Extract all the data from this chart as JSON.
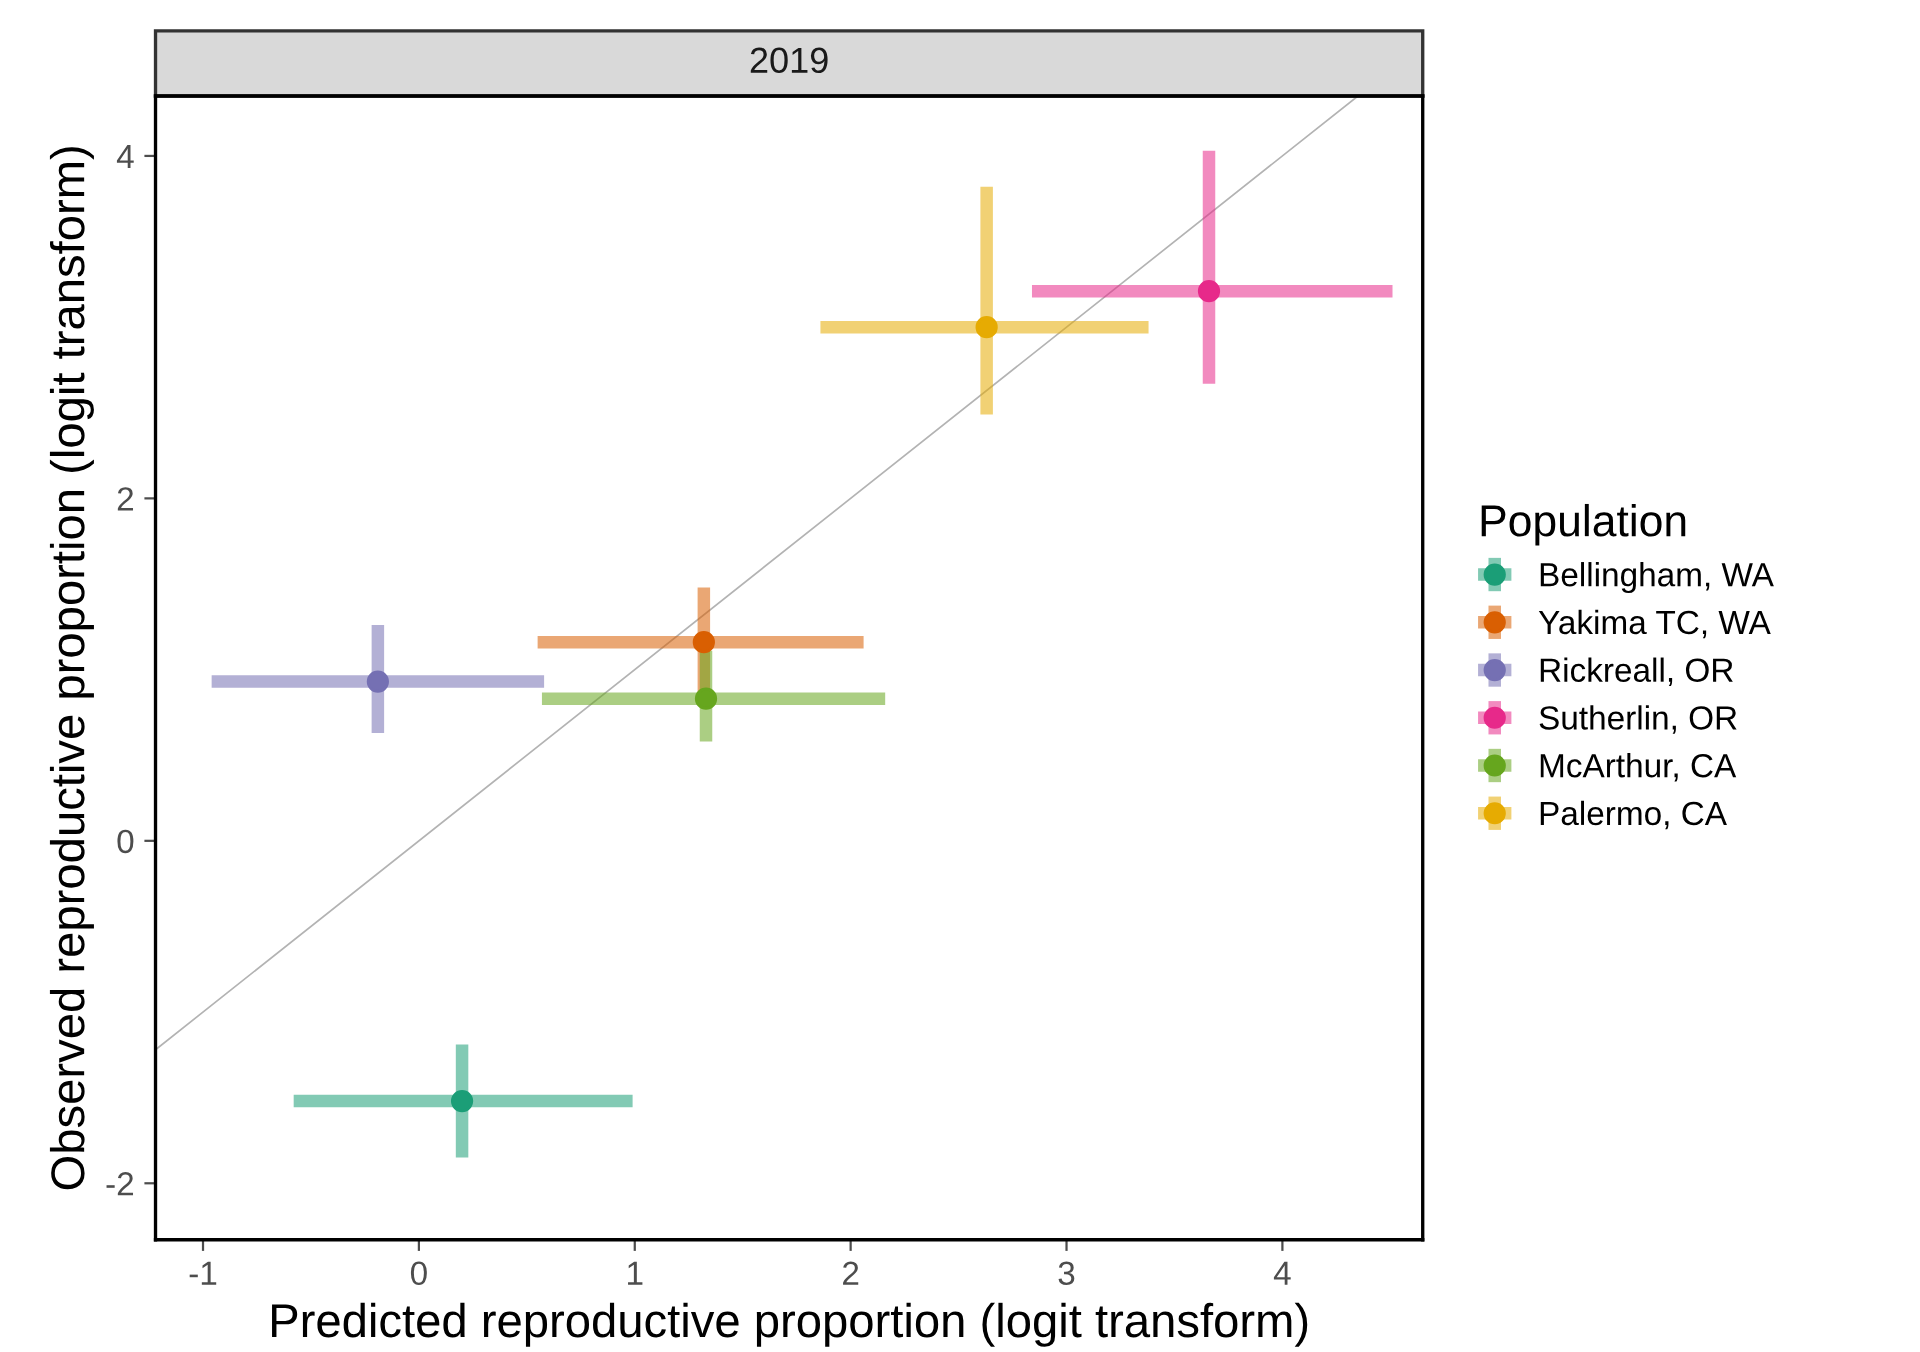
{
  "chart_data": {
    "type": "scatter",
    "title": "2019",
    "xlabel": "Predicted reproductive proportion (logit transform)",
    "ylabel": "Observed reproductive proportion (logit transform)",
    "legend_title": "Population",
    "legend": "right",
    "grid": false,
    "marker": "circle",
    "xlim": [
      -1.22,
      4.65
    ],
    "ylim": [
      -2.33,
      4.35
    ],
    "xticks": [
      -1,
      0,
      1,
      2,
      3,
      4
    ],
    "yticks": [
      -2,
      0,
      2,
      4
    ],
    "series": [
      {
        "type": "line",
        "marker": "none",
        "color": "#b3b3b3",
        "x": [
          -1.22,
          4.35
        ],
        "values": [
          -1.22,
          4.35
        ]
      },
      {
        "name": "Bellingham, WA",
        "color": "#1b9e77",
        "x": [
          0.2
        ],
        "values": [
          -1.52
        ],
        "errors": [
          [
            -1.85,
            -1.19
          ]
        ],
        "xerrors": [
          [
            -0.58,
            0.99
          ]
        ]
      },
      {
        "name": "Yakima TC, WA",
        "color": "#d95f02",
        "x": [
          1.32
        ],
        "values": [
          1.16
        ],
        "errors": [
          [
            0.85,
            1.48
          ]
        ],
        "xerrors": [
          [
            0.55,
            2.06
          ]
        ]
      },
      {
        "name": "Rickreall, OR",
        "color": "#7570b3",
        "x": [
          -0.19
        ],
        "values": [
          0.93
        ],
        "errors": [
          [
            0.63,
            1.26
          ]
        ],
        "xerrors": [
          [
            -0.96,
            0.58
          ]
        ]
      },
      {
        "name": "Sutherlin, OR",
        "color": "#e7298a",
        "x": [
          3.66
        ],
        "values": [
          3.21
        ],
        "errors": [
          [
            2.67,
            4.03
          ]
        ],
        "xerrors": [
          [
            2.84,
            4.51
          ]
        ]
      },
      {
        "name": "McArthur, CA",
        "color": "#66a61e",
        "x": [
          1.33
        ],
        "values": [
          0.83
        ],
        "errors": [
          [
            0.58,
            1.11
          ]
        ],
        "xerrors": [
          [
            0.57,
            2.16
          ]
        ]
      },
      {
        "name": "Palermo, CA",
        "color": "#e6ab02",
        "x": [
          2.63
        ],
        "values": [
          3.0
        ],
        "errors": [
          [
            2.49,
            3.82
          ]
        ],
        "xerrors": [
          [
            1.86,
            3.38
          ]
        ]
      }
    ]
  }
}
